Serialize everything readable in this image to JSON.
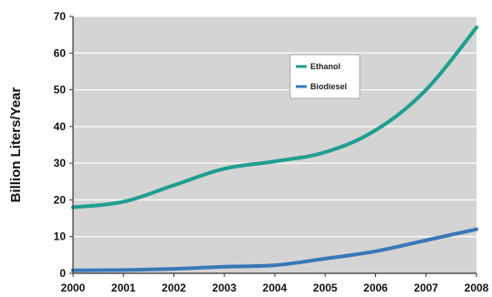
{
  "chart_data": {
    "type": "line",
    "title": "",
    "xlabel": "",
    "ylabel": "Billion Liters/Year",
    "x": [
      "2000",
      "2001",
      "2002",
      "2003",
      "2004",
      "2005",
      "2006",
      "2007",
      "2008"
    ],
    "ylim": [
      0,
      70
    ],
    "yticks": [
      "0",
      "10",
      "20",
      "30",
      "40",
      "50",
      "60",
      "70"
    ],
    "grid": true,
    "legend_position": "top-center",
    "plot_background": "#d4d4d4",
    "series": [
      {
        "name": "Ethanol",
        "color": "#1f9e8e",
        "values": [
          18,
          19.5,
          24,
          28.5,
          30.5,
          33,
          39,
          50,
          67
        ]
      },
      {
        "name": "Biodiesel",
        "color": "#3a78b8",
        "values": [
          0.8,
          0.9,
          1.2,
          1.8,
          2.2,
          4,
          6,
          9,
          12
        ]
      }
    ]
  }
}
